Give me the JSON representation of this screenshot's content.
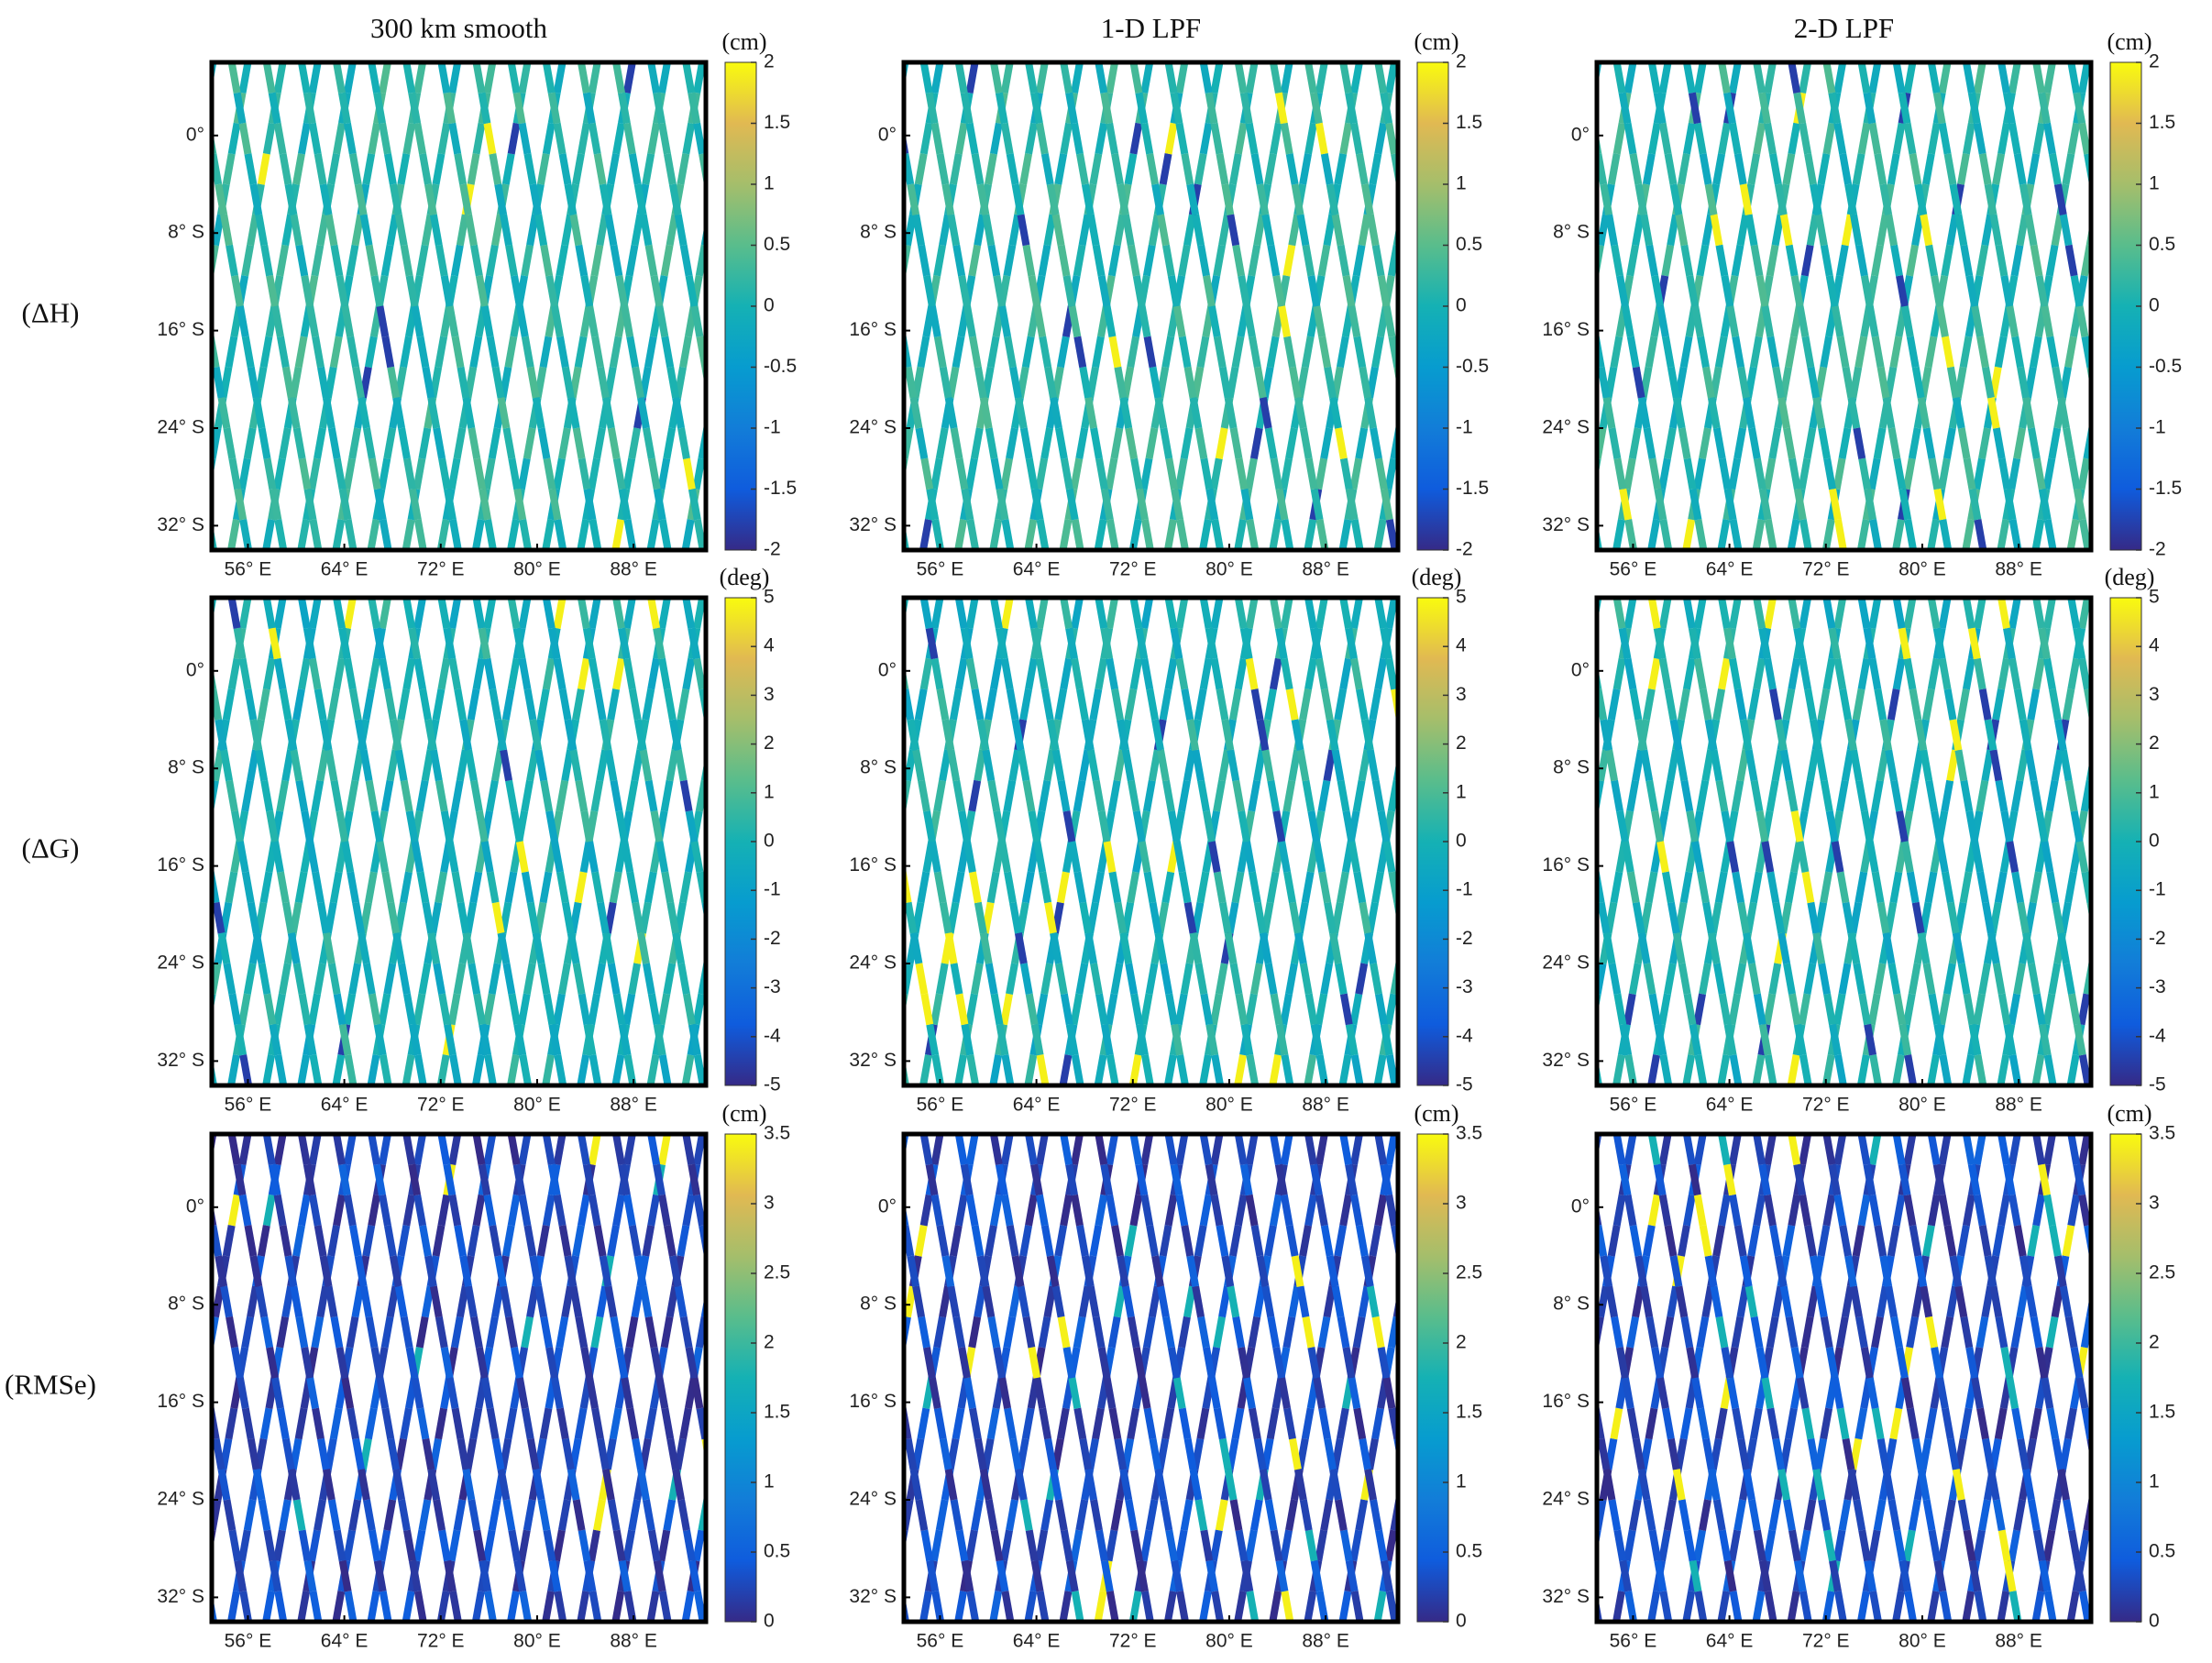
{
  "column_titles": [
    "300 km smooth",
    "1-D LPF",
    "2-D LPF"
  ],
  "row_labels": [
    "(ΔH)",
    "(ΔG)",
    "(RMSe)"
  ],
  "chart_data": [
    {
      "type": "track-map",
      "xlim": [
        53,
        94
      ],
      "ylim": [
        -34,
        6
      ],
      "xticks": [
        {
          "value": 56,
          "label": "56° E"
        },
        {
          "value": 64,
          "label": "64° E"
        },
        {
          "value": 72,
          "label": "72° E"
        },
        {
          "value": 80,
          "label": "80° E"
        },
        {
          "value": 88,
          "label": "88° E"
        }
      ],
      "yticks": [
        {
          "value": 0,
          "label": "0°"
        },
        {
          "value": -8,
          "label": "8° S"
        },
        {
          "value": -16,
          "label": "16° S"
        },
        {
          "value": -24,
          "label": "24° S"
        },
        {
          "value": -32,
          "label": "32° S"
        }
      ],
      "colorbar": {
        "unit": "(cm)",
        "lim": [
          -2,
          2
        ],
        "ticks": [
          -2,
          -1.5,
          -1,
          -0.5,
          0,
          0.5,
          1,
          1.5,
          2
        ]
      }
    },
    {
      "type": "track-map",
      "xlim": [
        53,
        94
      ],
      "ylim": [
        -34,
        6
      ],
      "xticks": [
        {
          "value": 56,
          "label": "56° E"
        },
        {
          "value": 64,
          "label": "64° E"
        },
        {
          "value": 72,
          "label": "72° E"
        },
        {
          "value": 80,
          "label": "80° E"
        },
        {
          "value": 88,
          "label": "88° E"
        }
      ],
      "yticks": [
        {
          "value": 0,
          "label": "0°"
        },
        {
          "value": -8,
          "label": "8° S"
        },
        {
          "value": -16,
          "label": "16° S"
        },
        {
          "value": -24,
          "label": "24° S"
        },
        {
          "value": -32,
          "label": "32° S"
        }
      ],
      "colorbar": {
        "unit": "(cm)",
        "lim": [
          -2,
          2
        ],
        "ticks": [
          -2,
          -1.5,
          -1,
          -0.5,
          0,
          0.5,
          1,
          1.5,
          2
        ]
      }
    },
    {
      "type": "track-map",
      "xlim": [
        53,
        94
      ],
      "ylim": [
        -34,
        6
      ],
      "xticks": [
        {
          "value": 56,
          "label": "56° E"
        },
        {
          "value": 64,
          "label": "64° E"
        },
        {
          "value": 72,
          "label": "72° E"
        },
        {
          "value": 80,
          "label": "80° E"
        },
        {
          "value": 88,
          "label": "88° E"
        }
      ],
      "yticks": [
        {
          "value": 0,
          "label": "0°"
        },
        {
          "value": -8,
          "label": "8° S"
        },
        {
          "value": -16,
          "label": "16° S"
        },
        {
          "value": -24,
          "label": "24° S"
        },
        {
          "value": -32,
          "label": "32° S"
        }
      ],
      "colorbar": {
        "unit": "(cm)",
        "lim": [
          -2,
          2
        ],
        "ticks": [
          -2,
          -1.5,
          -1,
          -0.5,
          0,
          0.5,
          1,
          1.5,
          2
        ]
      }
    },
    {
      "type": "track-map",
      "xlim": [
        53,
        94
      ],
      "ylim": [
        -34,
        6
      ],
      "xticks": [
        {
          "value": 56,
          "label": "56° E"
        },
        {
          "value": 64,
          "label": "64° E"
        },
        {
          "value": 72,
          "label": "72° E"
        },
        {
          "value": 80,
          "label": "80° E"
        },
        {
          "value": 88,
          "label": "88° E"
        }
      ],
      "yticks": [
        {
          "value": 0,
          "label": "0°"
        },
        {
          "value": -8,
          "label": "8° S"
        },
        {
          "value": -16,
          "label": "16° S"
        },
        {
          "value": -24,
          "label": "24° S"
        },
        {
          "value": -32,
          "label": "32° S"
        }
      ],
      "colorbar": {
        "unit": "(deg)",
        "lim": [
          -5,
          5
        ],
        "ticks": [
          -5,
          -4,
          -3,
          -2,
          -1,
          0,
          1,
          2,
          3,
          4,
          5
        ]
      }
    },
    {
      "type": "track-map",
      "xlim": [
        53,
        94
      ],
      "ylim": [
        -34,
        6
      ],
      "xticks": [
        {
          "value": 56,
          "label": "56° E"
        },
        {
          "value": 64,
          "label": "64° E"
        },
        {
          "value": 72,
          "label": "72° E"
        },
        {
          "value": 80,
          "label": "80° E"
        },
        {
          "value": 88,
          "label": "88° E"
        }
      ],
      "yticks": [
        {
          "value": 0,
          "label": "0°"
        },
        {
          "value": -8,
          "label": "8° S"
        },
        {
          "value": -16,
          "label": "16° S"
        },
        {
          "value": -24,
          "label": "24° S"
        },
        {
          "value": -32,
          "label": "32° S"
        }
      ],
      "colorbar": {
        "unit": "(deg)",
        "lim": [
          -5,
          5
        ],
        "ticks": [
          -5,
          -4,
          -3,
          -2,
          -1,
          0,
          1,
          2,
          3,
          4,
          5
        ]
      }
    },
    {
      "type": "track-map",
      "xlim": [
        53,
        94
      ],
      "ylim": [
        -34,
        6
      ],
      "xticks": [
        {
          "value": 56,
          "label": "56° E"
        },
        {
          "value": 64,
          "label": "64° E"
        },
        {
          "value": 72,
          "label": "72° E"
        },
        {
          "value": 80,
          "label": "80° E"
        },
        {
          "value": 88,
          "label": "88° E"
        }
      ],
      "yticks": [
        {
          "value": 0,
          "label": "0°"
        },
        {
          "value": -8,
          "label": "8° S"
        },
        {
          "value": -16,
          "label": "16° S"
        },
        {
          "value": -24,
          "label": "24° S"
        },
        {
          "value": -32,
          "label": "32° S"
        }
      ],
      "colorbar": {
        "unit": "(deg)",
        "lim": [
          -5,
          5
        ],
        "ticks": [
          -5,
          -4,
          -3,
          -2,
          -1,
          0,
          1,
          2,
          3,
          4,
          5
        ]
      }
    },
    {
      "type": "track-map",
      "xlim": [
        53,
        94
      ],
      "ylim": [
        -34,
        6
      ],
      "xticks": [
        {
          "value": 56,
          "label": "56° E"
        },
        {
          "value": 64,
          "label": "64° E"
        },
        {
          "value": 72,
          "label": "72° E"
        },
        {
          "value": 80,
          "label": "80° E"
        },
        {
          "value": 88,
          "label": "88° E"
        }
      ],
      "yticks": [
        {
          "value": 0,
          "label": "0°"
        },
        {
          "value": -8,
          "label": "8° S"
        },
        {
          "value": -16,
          "label": "16° S"
        },
        {
          "value": -24,
          "label": "24° S"
        },
        {
          "value": -32,
          "label": "32° S"
        }
      ],
      "colorbar": {
        "unit": "(cm)",
        "lim": [
          0,
          3.5
        ],
        "ticks": [
          0,
          0.5,
          1,
          1.5,
          2,
          2.5,
          3,
          3.5
        ]
      }
    },
    {
      "type": "track-map",
      "xlim": [
        53,
        94
      ],
      "ylim": [
        -34,
        6
      ],
      "xticks": [
        {
          "value": 56,
          "label": "56° E"
        },
        {
          "value": 64,
          "label": "64° E"
        },
        {
          "value": 72,
          "label": "72° E"
        },
        {
          "value": 80,
          "label": "80° E"
        },
        {
          "value": 88,
          "label": "88° E"
        }
      ],
      "yticks": [
        {
          "value": 0,
          "label": "0°"
        },
        {
          "value": -8,
          "label": "8° S"
        },
        {
          "value": -16,
          "label": "16° S"
        },
        {
          "value": -24,
          "label": "24° S"
        },
        {
          "value": -32,
          "label": "32° S"
        }
      ],
      "colorbar": {
        "unit": "(cm)",
        "lim": [
          0,
          3.5
        ],
        "ticks": [
          0,
          0.5,
          1,
          1.5,
          2,
          2.5,
          3,
          3.5
        ]
      }
    },
    {
      "type": "track-map",
      "xlim": [
        53,
        94
      ],
      "ylim": [
        -34,
        6
      ],
      "xticks": [
        {
          "value": 56,
          "label": "56° E"
        },
        {
          "value": 64,
          "label": "64° E"
        },
        {
          "value": 72,
          "label": "72° E"
        },
        {
          "value": 80,
          "label": "80° E"
        },
        {
          "value": 88,
          "label": "88° E"
        }
      ],
      "yticks": [
        {
          "value": 0,
          "label": "0°"
        },
        {
          "value": -8,
          "label": "8° S"
        },
        {
          "value": -16,
          "label": "16° S"
        },
        {
          "value": -24,
          "label": "24° S"
        },
        {
          "value": -32,
          "label": "32° S"
        }
      ],
      "colorbar": {
        "unit": "(cm)",
        "lim": [
          0,
          3.5
        ],
        "ticks": [
          0,
          0.5,
          1,
          1.5,
          2,
          2.5,
          3,
          3.5
        ]
      }
    }
  ]
}
